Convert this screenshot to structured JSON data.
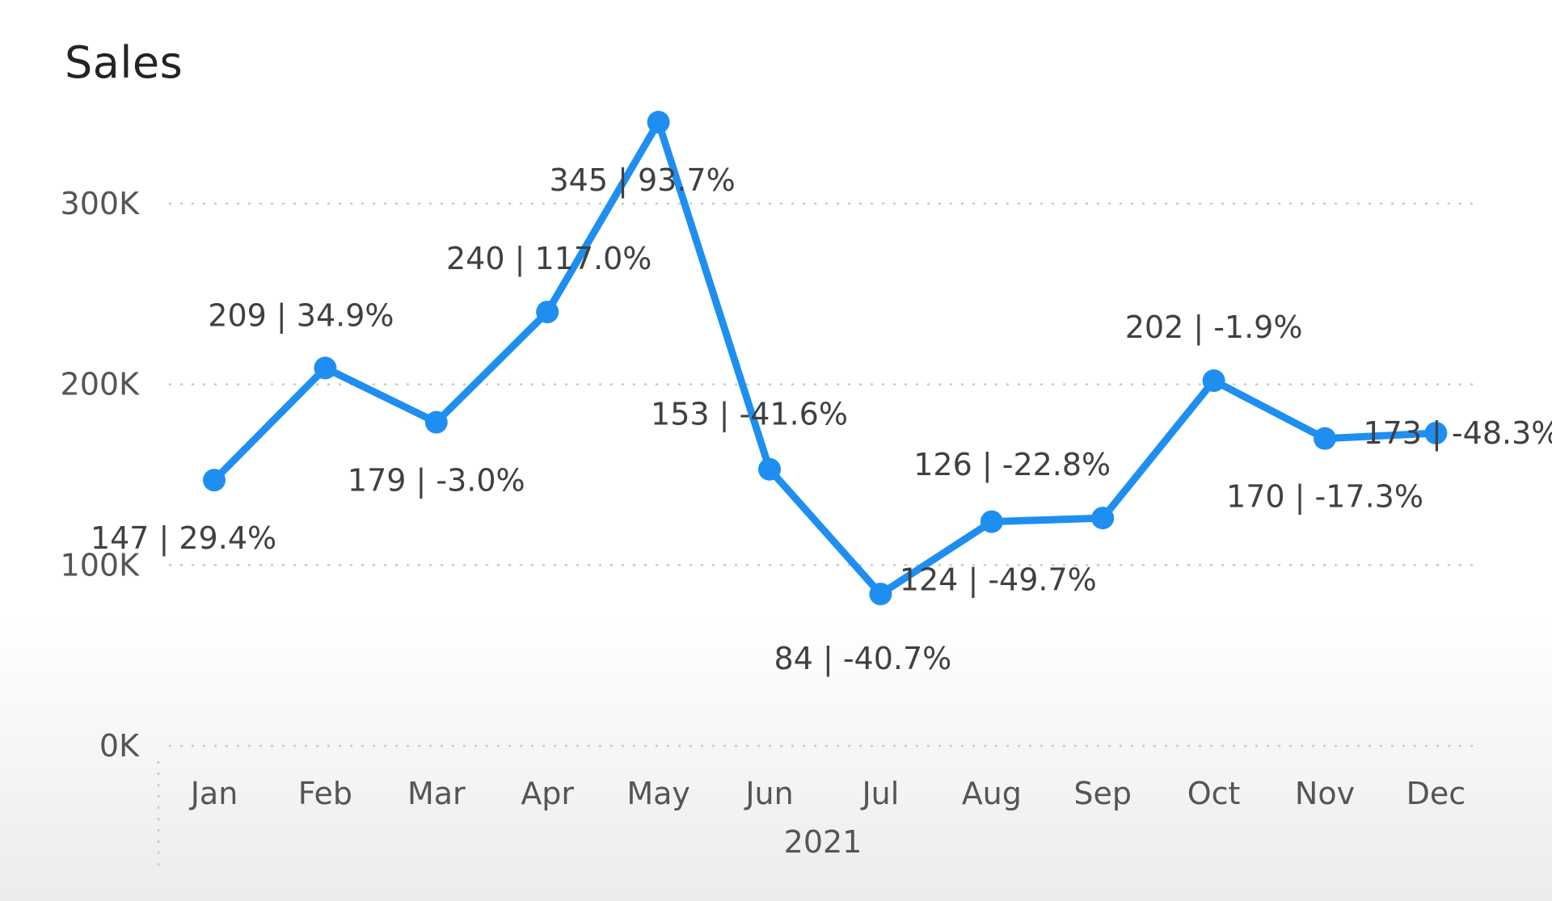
{
  "chart_data": {
    "type": "line",
    "title": "Sales",
    "xlabel": "2021",
    "ylabel": "",
    "ylim": [
      0,
      350000
    ],
    "yticks": [
      0,
      100000,
      200000,
      300000
    ],
    "ytick_labels": [
      "0K",
      "100K",
      "200K",
      "300K"
    ],
    "grid": true,
    "grid_style": "dotted-horizontal",
    "legend": "none",
    "categories": [
      "Jan",
      "Feb",
      "Mar",
      "Apr",
      "May",
      "Jun",
      "Jul",
      "Aug",
      "Sep",
      "Oct",
      "Nov",
      "Dec"
    ],
    "series": [
      {
        "color": "#1E8FF0",
        "values": [
          147000,
          209000,
          179000,
          240000,
          345000,
          153000,
          84000,
          124000,
          126000,
          202000,
          170000,
          173000
        ],
        "data_labels": [
          "147 | 29.4%",
          "209 | 34.9%",
          "179 | -3.0%",
          "240 | 117.0%",
          "345 | 93.7%",
          "153 | -41.6%",
          "84 | -40.7%",
          "124 | -49.7%",
          "126 | -22.8%",
          "202 | -1.9%",
          "170 | -17.3%",
          "173 | -48.3%"
        ]
      }
    ]
  }
}
